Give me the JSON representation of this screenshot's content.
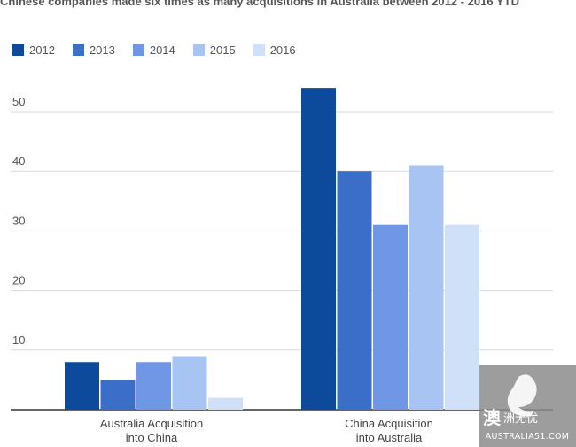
{
  "chart_data": {
    "type": "bar",
    "title": "Chinese companies made six times as many acquisitions in Australia between 2012 - 2016 YTD",
    "categories": [
      "Australia Acquisition into China",
      "China Acquisition into Australia"
    ],
    "series": [
      {
        "name": "2012",
        "color": "#0d4a9b",
        "values": [
          8,
          54
        ]
      },
      {
        "name": "2013",
        "color": "#3b6ec9",
        "values": [
          5,
          40
        ]
      },
      {
        "name": "2014",
        "color": "#6f97e6",
        "values": [
          8,
          31
        ]
      },
      {
        "name": "2015",
        "color": "#a8c4f2",
        "values": [
          9,
          41
        ]
      },
      {
        "name": "2016",
        "color": "#cfe0f8",
        "values": [
          2,
          31
        ]
      }
    ],
    "yticks": [
      10,
      20,
      30,
      40,
      50
    ],
    "ylim": [
      0,
      58
    ],
    "grid": true,
    "legend": "top-left",
    "xlabel": "",
    "ylabel": ""
  },
  "watermark": {
    "glyph": "澳",
    "cn_text": "洲无忧",
    "en_text": "AUSTRALIA51.COM"
  }
}
